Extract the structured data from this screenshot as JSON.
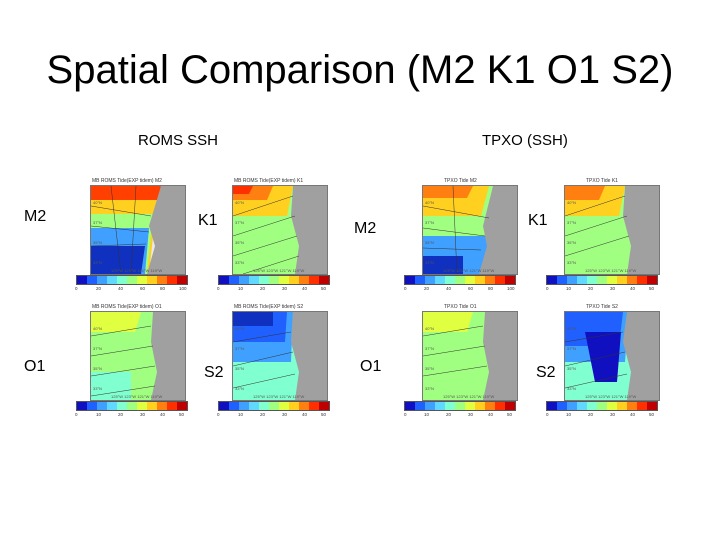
{
  "slide_title": "Spatial Comparison (M2 K1 O1 S2)",
  "headers": {
    "roms": "ROMS SSH",
    "tpxo": "TPXO (SSH)"
  },
  "labels": {
    "m2": "M2",
    "k1": "K1",
    "o1": "O1",
    "s2": "S2"
  },
  "panels": {
    "roms_m2": {
      "title": "MB ROMS Tide(EXP tidem) M2",
      "ticks": [
        "0",
        "20",
        "40",
        "60",
        "80",
        "100"
      ]
    },
    "roms_k1": {
      "title": "MB ROMS Tide(EXP tidem) K1",
      "ticks": [
        "0",
        "10",
        "20",
        "30",
        "40",
        "50"
      ]
    },
    "roms_o1": {
      "title": "MB ROMS Tide(EXP tidem) O1",
      "ticks": [
        "0",
        "10",
        "20",
        "30",
        "40",
        "50"
      ]
    },
    "roms_s2": {
      "title": "MB ROMS Tide(EXP tidem) S2",
      "ticks": [
        "0",
        "10",
        "20",
        "30",
        "40",
        "50"
      ]
    },
    "tpxo_m2": {
      "title": "TPXO Tide M2",
      "ticks": [
        "0",
        "20",
        "40",
        "60",
        "80",
        "100"
      ]
    },
    "tpxo_k1": {
      "title": "TPXO Tide K1",
      "ticks": [
        "0",
        "10",
        "20",
        "30",
        "40",
        "50"
      ]
    },
    "tpxo_o1": {
      "title": "TPXO Tide O1",
      "ticks": [
        "0",
        "10",
        "20",
        "30",
        "40",
        "50"
      ]
    },
    "tpxo_s2": {
      "title": "TPXO Tide S2",
      "ticks": [
        "0",
        "10",
        "20",
        "30",
        "40",
        "50"
      ]
    }
  },
  "lat_labels": [
    "40°N",
    "37°N",
    "35°N",
    "33°N"
  ],
  "lon_labels": "125°W 123°W 121°W 119°W",
  "colorbar": [
    "#1010c0",
    "#2060ff",
    "#40a0ff",
    "#60d8ff",
    "#80ffd0",
    "#a0ff80",
    "#e0ff40",
    "#ffd020",
    "#ff8010",
    "#ff3000",
    "#c00000"
  ]
}
